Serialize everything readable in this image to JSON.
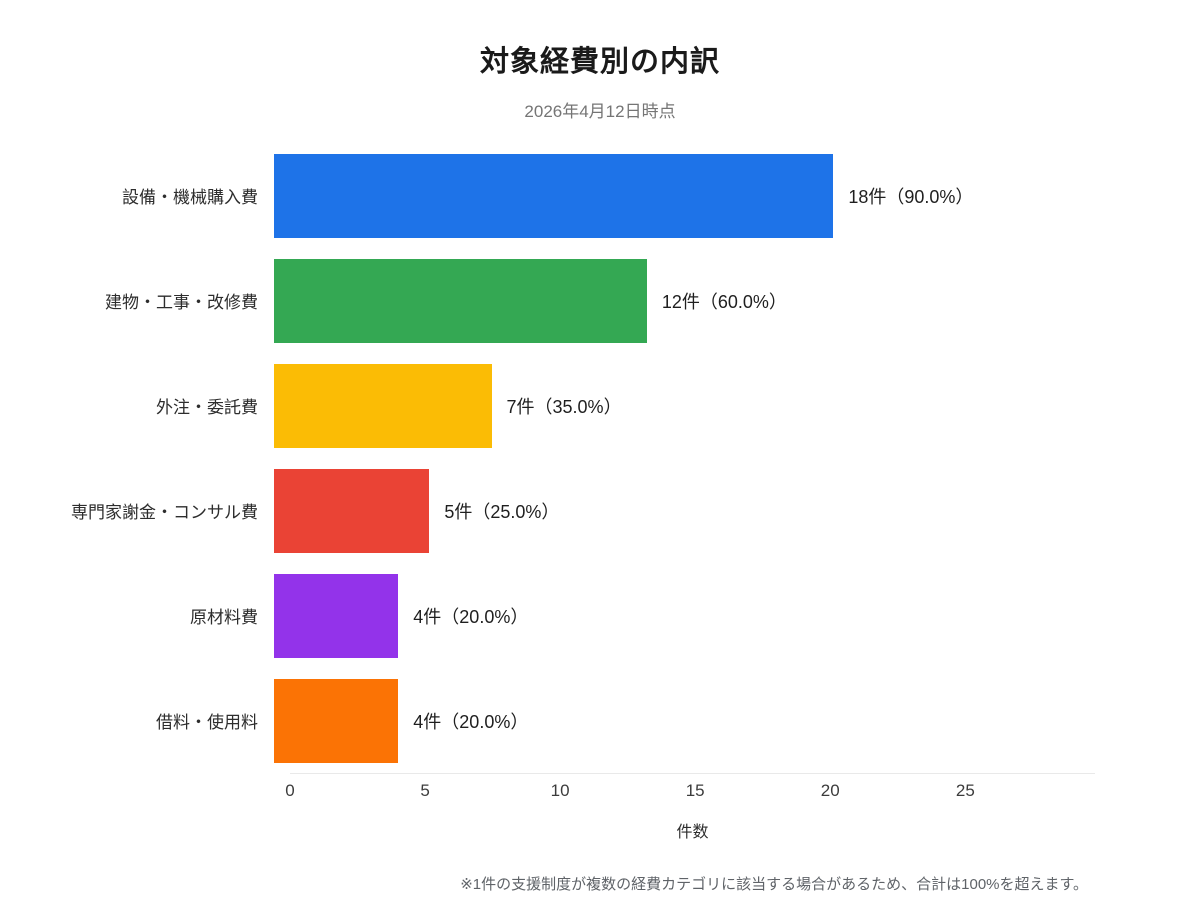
{
  "title": "対象経費別の内訳",
  "subtitle": "2026年4月12日時点",
  "chart_data": {
    "type": "bar",
    "orientation": "horizontal",
    "title": "対象経費別の内訳",
    "subtitle": "2026年4月12日時点",
    "xlabel": "件数",
    "ylabel": "",
    "xlim": [
      0,
      29.8
    ],
    "x_ticks": [
      0,
      5,
      10,
      15,
      20,
      25
    ],
    "grid": false,
    "legend": "none",
    "categories": [
      "設備・機械購入費",
      "建物・工事・改修費",
      "外注・委託費",
      "専門家謝金・コンサル費",
      "原材料費",
      "借料・使用料"
    ],
    "values": [
      18,
      12,
      7,
      5,
      4,
      4
    ],
    "percentages": [
      90.0,
      60.0,
      35.0,
      25.0,
      20.0,
      20.0
    ],
    "value_labels": [
      "18件（90.0%）",
      "12件（60.0%）",
      "7件（35.0%）",
      "5件（25.0%）",
      "4件（20.0%）",
      "4件（20.0%）"
    ],
    "bar_colors": [
      "#1e73e8",
      "#34a853",
      "#fbbc05",
      "#ea4335",
      "#9333ea",
      "#fb7305"
    ]
  },
  "footnote": "※1件の支援制度が複数の経費カテゴリに該当する場合があるため、合計は100%を超えます。"
}
